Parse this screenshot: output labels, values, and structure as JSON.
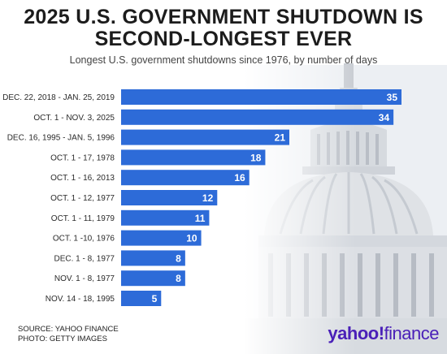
{
  "header": {
    "title_line1": "2025 U.S. GOVERNMENT SHUTDOWN IS",
    "title_line2": "SECOND-LONGEST EVER",
    "subtitle": "Longest U.S. government shutdowns since 1976, by number of days"
  },
  "footer": {
    "source": "SOURCE: YAHOO FINANCE",
    "photo": "PHOTO: GETTY IMAGES"
  },
  "logo": {
    "yahoo": "yahoo",
    "bang": "!",
    "finance": "finance",
    "color": "#4a20b8"
  },
  "colors": {
    "bar": "#2d6bd8",
    "bar_label": "#ffffff",
    "category_label": "#2a2a2a"
  },
  "chart_data": {
    "type": "bar",
    "orientation": "horizontal",
    "categories": [
      "DEC. 22, 2018 - JAN. 25, 2019",
      "OCT. 1 - NOV. 3, 2025",
      "DEC. 16, 1995 - JAN. 5, 1996",
      "OCT. 1 - 17, 1978",
      "OCT. 1 - 16, 2013",
      "OCT. 1 - 12, 1977",
      "OCT. 1 - 11, 1979",
      "OCT. 1 -10, 1976",
      "DEC. 1 - 8, 1977",
      "NOV. 1 - 8, 1977",
      "NOV. 14 - 18, 1995"
    ],
    "values": [
      35,
      34,
      21,
      18,
      16,
      12,
      11,
      10,
      8,
      8,
      5
    ],
    "data_labels": true,
    "xlim": [
      0,
      35
    ],
    "grid": false,
    "legend": "none"
  }
}
